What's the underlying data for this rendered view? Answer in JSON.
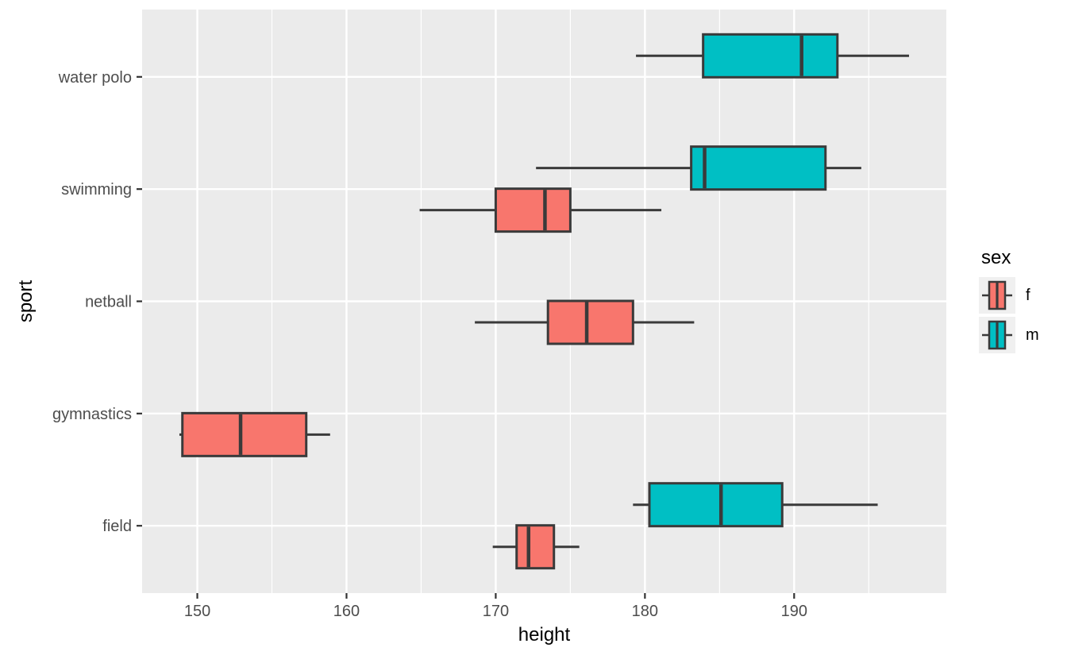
{
  "chart_data": {
    "type": "boxplot",
    "orientation": "horizontal",
    "title": "",
    "xlabel": "height",
    "ylabel": "sport",
    "x_ticks": [
      150,
      160,
      170,
      180,
      190
    ],
    "x_minor_ticks": [
      155,
      165,
      175,
      185,
      195
    ],
    "x_range_shown": [
      146.3,
      200.2
    ],
    "categories": [
      "water polo",
      "swimming",
      "netball",
      "gymnastics",
      "field"
    ],
    "groups": [
      {
        "sport": "water polo",
        "sex": "m",
        "whisker_low": 179.4,
        "q1": 183.9,
        "median": 190.5,
        "q3": 192.9,
        "whisker_high": 197.7
      },
      {
        "sport": "swimming",
        "sex": "m",
        "whisker_low": 172.7,
        "q1": 183.1,
        "median": 184.0,
        "q3": 192.1,
        "whisker_high": 194.5
      },
      {
        "sport": "swimming",
        "sex": "f",
        "whisker_low": 164.9,
        "q1": 170.0,
        "median": 173.3,
        "q3": 175.0,
        "whisker_high": 181.1
      },
      {
        "sport": "netball",
        "sex": "f",
        "whisker_low": 168.6,
        "q1": 173.5,
        "median": 176.1,
        "q3": 179.2,
        "whisker_high": 183.3
      },
      {
        "sport": "gymnastics",
        "sex": "f",
        "whisker_low": 148.8,
        "q1": 149.0,
        "median": 152.9,
        "q3": 157.3,
        "whisker_high": 158.9
      },
      {
        "sport": "field",
        "sex": "m",
        "whisker_low": 179.2,
        "q1": 180.3,
        "median": 185.1,
        "q3": 189.2,
        "whisker_high": 195.6
      },
      {
        "sport": "field",
        "sex": "f",
        "whisker_low": 169.8,
        "q1": 171.4,
        "median": 172.2,
        "q3": 173.9,
        "whisker_high": 175.6
      }
    ],
    "legend": {
      "title": "sex",
      "position": "right",
      "entries": [
        {
          "label": "f",
          "fill": "#F8766D"
        },
        {
          "label": "m",
          "fill": "#00BFC4"
        }
      ]
    },
    "colors": {
      "f": "#F8766D",
      "m": "#00BFC4",
      "outline": "#3A3A3A",
      "panel_background": "#EBEBEB",
      "gridline_major": "#FFFFFF",
      "gridline_minor": "#FFFFFF",
      "tick_mark": "#333333",
      "tick_label": "#4D4D4D",
      "axis_title": "#000000",
      "legend_key_background": "#F0F0F0"
    },
    "grid": {
      "major": true,
      "minor": true
    }
  }
}
